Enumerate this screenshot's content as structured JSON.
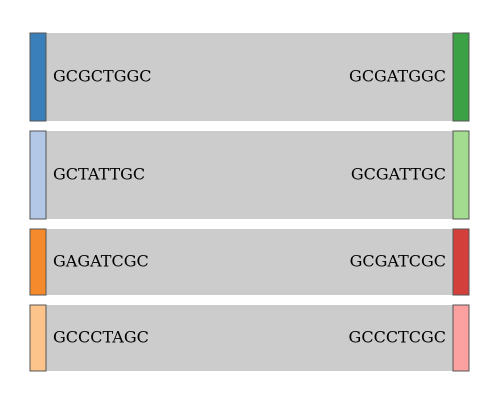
{
  "chart_data": {
    "type": "sankey",
    "flows": [
      {
        "source": "GCGCTGGC",
        "target": "GCGATGGC",
        "source_color": "#3a7fb9",
        "target_color": "#3ca045",
        "value": 1
      },
      {
        "source": "GCTATTGC",
        "target": "GCGATTGC",
        "source_color": "#b3c8e6",
        "target_color": "#a3dc8f",
        "value": 1
      },
      {
        "source": "GAGATCGC",
        "target": "GCGATCGC",
        "source_color": "#f58a2c",
        "target_color": "#d33f3b",
        "value": 0.75
      },
      {
        "source": "GCCCTAGC",
        "target": "GCCCTCGC",
        "source_color": "#fcc48a",
        "target_color": "#fca1a0",
        "value": 0.75
      }
    ],
    "link_color": "#cccccc"
  }
}
